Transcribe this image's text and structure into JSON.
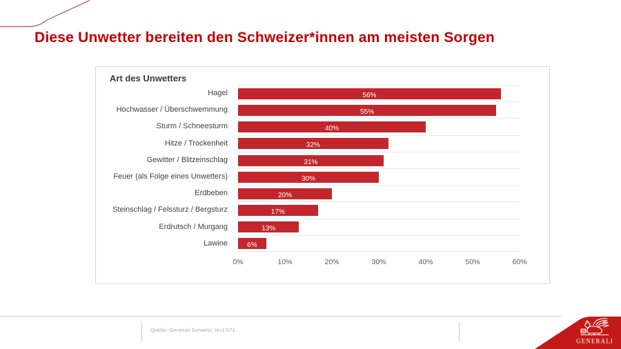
{
  "slide": {
    "title": "Diese Unwetter bereiten den Schweizer*innen am meisten Sorgen"
  },
  "chart": {
    "header": "Art des Unwetters"
  },
  "chart_data": {
    "type": "bar",
    "orientation": "horizontal",
    "title": "Art des Unwetters",
    "categories": [
      "Hagel",
      "Hochwasser / Überschwemmung",
      "Sturm / Schneesturm",
      "Hitze / Trockenheit",
      "Gewitter / Blitzeinschlag",
      "Feuer (als Folge eines Unwetters)",
      "Erdbeben",
      "Steinschlag / Felssturz / Bergsturz",
      "Erdrutsch / Murgang",
      "Lawine"
    ],
    "values": [
      56,
      55,
      40,
      32,
      31,
      30,
      20,
      17,
      13,
      6
    ],
    "value_labels": [
      "56%",
      "55%",
      "40%",
      "32%",
      "31%",
      "30%",
      "20%",
      "17%",
      "13%",
      "6%"
    ],
    "xlabel": "",
    "ylabel": "",
    "xlim": [
      0,
      60
    ],
    "x_ticks": [
      "0%",
      "10%",
      "20%",
      "30%",
      "40%",
      "50%",
      "60%"
    ],
    "grid": "horizontal category separators only",
    "legend": "none",
    "bar_color": "#C2262C",
    "value_label_color": "#FFFFFF"
  },
  "footer": {
    "source": "Quelle:  Generali Schweiz, N=1'071"
  },
  "logo": {
    "brand": "GENERALI",
    "icon": "winged-lion-icon"
  },
  "colors": {
    "title_red": "#C00000",
    "bar_red": "#C2262C",
    "logo_red": "#C21B17",
    "chart_border": "#D9D9D9",
    "separator": "#E7E7E7",
    "axis_text": "#595959",
    "source_text": "#A6A6A6"
  }
}
